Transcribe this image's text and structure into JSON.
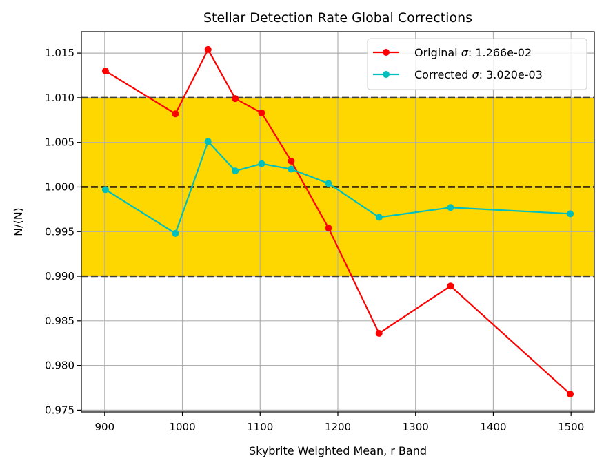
{
  "chart_data": {
    "type": "line",
    "title": "Stellar Detection Rate Global Corrections",
    "xlabel": "Skybrite Weighted Mean, r Band",
    "ylabel": "N/⟨N⟩",
    "xlim": [
      870,
      1530
    ],
    "ylim": [
      0.9748,
      1.0174
    ],
    "xticks": [
      900,
      1000,
      1100,
      1200,
      1300,
      1400,
      1500
    ],
    "xtick_labels": [
      "900",
      "1000",
      "1100",
      "1200",
      "1300",
      "1400",
      "1500"
    ],
    "yticks": [
      0.975,
      0.98,
      0.985,
      0.99,
      0.995,
      1.0,
      1.005,
      1.01,
      1.015
    ],
    "ytick_labels": [
      "0.975",
      "0.980",
      "0.985",
      "0.990",
      "0.995",
      "1.000",
      "1.005",
      "1.010",
      "1.015"
    ],
    "grid": true,
    "legend_position": "top-right",
    "band": {
      "from": 0.99,
      "to": 1.01,
      "color": "#ffd700"
    },
    "reference_lines": [
      {
        "y": 1.01,
        "style": "dashed",
        "color": "#404040"
      },
      {
        "y": 1.0,
        "style": "dashed",
        "color": "#000000"
      },
      {
        "y": 0.99,
        "style": "dashed",
        "color": "#404040"
      }
    ],
    "series": [
      {
        "name": "Original σ: 1.266e-02",
        "legend_prefix": "Original ",
        "legend_sigma": "σ",
        "legend_suffix": ": 1.266e-02",
        "color": "#ff0000",
        "x": [
          901,
          991,
          1033,
          1068,
          1102,
          1140,
          1188,
          1253,
          1345,
          1499
        ],
        "y": [
          1.013,
          1.0082,
          1.0154,
          1.0099,
          1.0083,
          1.0029,
          0.9954,
          0.9836,
          0.9889,
          0.9768
        ]
      },
      {
        "name": "Corrected σ: 3.020e-03",
        "legend_prefix": "Corrected ",
        "legend_sigma": "σ",
        "legend_suffix": ": 3.020e-03",
        "color": "#00bfbf",
        "x": [
          901,
          991,
          1033,
          1068,
          1102,
          1140,
          1188,
          1253,
          1345,
          1499
        ],
        "y": [
          0.9997,
          0.9948,
          1.0051,
          1.0018,
          1.0026,
          1.002,
          1.0004,
          0.9966,
          0.9977,
          0.997
        ]
      }
    ]
  }
}
